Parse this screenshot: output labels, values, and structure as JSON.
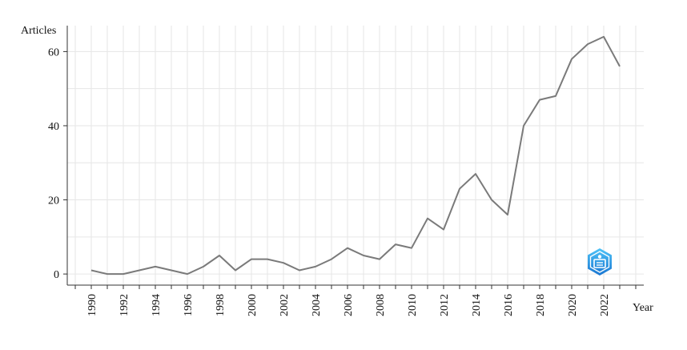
{
  "chart_data": {
    "type": "line",
    "ylabel": "Articles",
    "xlabel": "Year",
    "ylim": [
      -3,
      67
    ],
    "yticks": [
      0,
      20,
      40,
      60
    ],
    "xlim": [
      1988.5,
      2024.5
    ],
    "xticks": [
      1990,
      1992,
      1994,
      1996,
      1998,
      2000,
      2002,
      2004,
      2006,
      2008,
      2010,
      2012,
      2014,
      2016,
      2018,
      2020,
      2022
    ],
    "grid": true,
    "series": [
      {
        "color": "#7a7a7a",
        "x": [
          1990,
          1991,
          1992,
          1993,
          1994,
          1995,
          1996,
          1997,
          1998,
          1999,
          2000,
          2001,
          2002,
          2003,
          2004,
          2005,
          2006,
          2007,
          2008,
          2009,
          2010,
          2011,
          2012,
          2013,
          2014,
          2015,
          2016,
          2017,
          2018,
          2019,
          2020,
          2021,
          2022,
          2023
        ],
        "y": [
          1,
          0,
          0,
          1,
          2,
          1,
          0,
          2,
          5,
          1,
          4,
          4,
          3,
          1,
          2,
          4,
          7,
          5,
          4,
          8,
          7,
          15,
          12,
          23,
          27,
          20,
          16,
          40,
          47,
          48,
          58,
          62,
          64,
          56
        ]
      }
    ]
  },
  "watermark": {
    "icon": "shield-logo-icon",
    "color": "#2fa4e7"
  }
}
